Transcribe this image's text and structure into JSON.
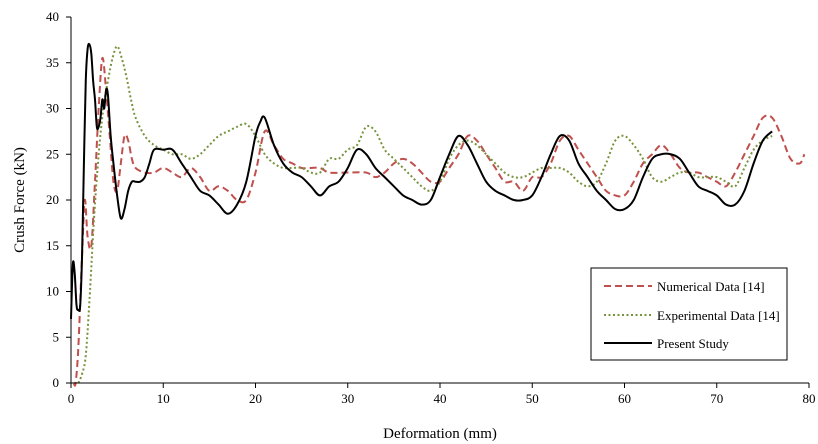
{
  "chart_data": {
    "type": "line",
    "xlabel": "Deformation (mm)",
    "ylabel": "Crush Force (kN)",
    "xlim": [
      0,
      80
    ],
    "ylim": [
      0,
      40
    ],
    "xticks": [
      0,
      10,
      20,
      30,
      40,
      50,
      60,
      70,
      80
    ],
    "yticks": [
      0,
      5,
      10,
      15,
      20,
      25,
      30,
      35,
      40
    ],
    "grid": false,
    "legend_position": "lower-right",
    "series": [
      {
        "name": "Numerical Data [14]",
        "color": "#c0504d",
        "dash": "dashed",
        "x": [
          0.3,
          0.5,
          0.8,
          1.2,
          1.5,
          1.8,
          2.2,
          2.6,
          3.0,
          3.4,
          3.8,
          4.2,
          4.6,
          5.0,
          5.4,
          5.8,
          6.2,
          6.6,
          7.0,
          8.0,
          9.0,
          10.0,
          11.0,
          12.0,
          13.0,
          14.0,
          15.0,
          16.0,
          17.0,
          18.0,
          19.0,
          20.0,
          21.0,
          22.0,
          23.0,
          24.0,
          25.0,
          26.0,
          27.0,
          28.0,
          30.0,
          32.0,
          33.0,
          34.0,
          35.0,
          36.0,
          37.0,
          38.0,
          39.0,
          40.0,
          41.0,
          42.0,
          43.0,
          44.0,
          45.0,
          46.0,
          47.0,
          48.0,
          49.0,
          50.0,
          51.0,
          52.0,
          53.0,
          54.0,
          55.0,
          56.0,
          57.0,
          58.0,
          59.0,
          60.0,
          61.0,
          62.0,
          63.0,
          64.0,
          65.0,
          66.0,
          67.0,
          68.0,
          69.0,
          70.0,
          71.0,
          72.0,
          73.0,
          74.0,
          75.0,
          76.0,
          77.0,
          78.0,
          79.0,
          79.5
        ],
        "y": [
          0,
          0,
          4,
          14,
          20,
          16,
          15,
          22,
          30,
          35.5,
          32,
          27,
          22,
          21,
          24,
          27,
          26.5,
          24.5,
          23.5,
          23,
          23,
          23.5,
          23,
          22.5,
          23.5,
          22.5,
          21,
          21.5,
          21,
          20,
          20,
          23,
          27.5,
          26,
          24.5,
          24,
          23.5,
          23.5,
          23.5,
          23,
          23,
          23,
          22.5,
          23,
          24,
          24.5,
          24,
          23,
          22,
          22,
          23.5,
          25,
          27,
          26.5,
          25,
          23.5,
          22,
          22,
          21,
          22.5,
          22.5,
          24,
          26.5,
          27,
          25.5,
          24,
          22.5,
          21,
          20.5,
          20.5,
          22,
          24,
          25,
          26,
          25,
          23.5,
          23,
          23,
          22.5,
          22,
          21.5,
          23,
          25,
          27,
          29,
          29,
          27,
          24.5,
          24,
          25
        ]
      },
      {
        "name": "Experimental Data [14]",
        "color": "#77933c",
        "dash": "dotted",
        "x": [
          0.8,
          1.2,
          1.6,
          2.0,
          2.5,
          3.0,
          3.5,
          4.0,
          4.5,
          5.0,
          5.5,
          6.0,
          6.5,
          7.0,
          8.0,
          9.0,
          10.0,
          11.0,
          12.0,
          13.0,
          14.0,
          15.0,
          16.0,
          17.0,
          18.0,
          19.0,
          20.0,
          21.0,
          22.0,
          23.0,
          24.0,
          25.0,
          26.0,
          27.0,
          28.0,
          29.0,
          30.0,
          31.0,
          32.0,
          33.0,
          34.0,
          35.0,
          36.0,
          37.0,
          38.0,
          39.0,
          40.0,
          41.0,
          42.0,
          43.0,
          44.0,
          45.0,
          46.0,
          47.0,
          48.0,
          49.0,
          50.0,
          51.0,
          52.0,
          53.0,
          54.0,
          55.0,
          56.0,
          57.0,
          58.0,
          59.0,
          60.0,
          61.0,
          62.0,
          63.0,
          64.0,
          65.0,
          66.0,
          67.0,
          68.0,
          69.0,
          70.0,
          71.0,
          72.0,
          73.0,
          74.0,
          75.0,
          76.0
        ],
        "y": [
          0,
          1,
          3,
          9,
          18,
          25,
          30,
          33,
          35.5,
          36.8,
          35.5,
          33.5,
          31,
          29,
          27,
          26,
          25.5,
          25,
          25,
          24.5,
          25,
          26,
          27,
          27.5,
          28,
          28.3,
          27,
          25,
          24,
          23.5,
          23.5,
          23.5,
          23,
          23,
          24.5,
          24.5,
          25.5,
          26,
          28,
          27.5,
          25.5,
          24.5,
          23.5,
          22.5,
          21.5,
          21,
          22,
          24.5,
          26,
          26.5,
          26,
          25,
          24,
          23,
          22.5,
          22.5,
          23,
          23.5,
          23.5,
          23.5,
          23,
          22,
          21.5,
          22,
          24,
          26.5,
          27,
          26,
          24.5,
          22.5,
          22,
          22.5,
          23,
          23,
          22.5,
          22.5,
          22.5,
          22,
          21.5,
          23.5,
          25.5,
          26.5,
          27
        ]
      },
      {
        "name": "Present Study",
        "color": "#000000",
        "dash": "solid",
        "x": [
          0,
          0.2,
          0.4,
          0.6,
          0.8,
          1.0,
          1.2,
          1.4,
          1.6,
          1.8,
          2.0,
          2.2,
          2.4,
          2.6,
          2.8,
          3.0,
          3.2,
          3.4,
          3.6,
          3.8,
          4.0,
          4.3,
          4.6,
          5.0,
          5.4,
          5.8,
          6.2,
          6.6,
          7.0,
          7.5,
          8.0,
          8.5,
          9.0,
          10.0,
          11.0,
          12.0,
          13.0,
          14.0,
          15.0,
          16.0,
          17.0,
          18.0,
          19.0,
          20.0,
          20.5,
          21.0,
          22.0,
          23.0,
          24.0,
          25.0,
          26.0,
          27.0,
          28.0,
          29.0,
          30.0,
          31.0,
          32.0,
          33.0,
          34.0,
          35.0,
          36.0,
          37.0,
          38.0,
          39.0,
          40.0,
          41.0,
          42.0,
          43.0,
          44.0,
          45.0,
          46.0,
          47.0,
          48.0,
          49.0,
          50.0,
          51.0,
          52.0,
          53.0,
          54.0,
          55.0,
          56.0,
          57.0,
          58.0,
          59.0,
          60.0,
          61.0,
          62.0,
          63.0,
          64.0,
          65.0,
          66.0,
          67.0,
          68.0,
          69.0,
          70.0,
          71.0,
          72.0,
          73.0,
          74.0,
          75.0,
          76.0
        ],
        "y": [
          7,
          13,
          12,
          8.5,
          8,
          8.5,
          14,
          24,
          33,
          36.5,
          37,
          36,
          33,
          31,
          28,
          28,
          29,
          31,
          30,
          32,
          31.5,
          27,
          24,
          20.5,
          18,
          19,
          21,
          22,
          22,
          22,
          22.5,
          24,
          25.5,
          25.5,
          25.5,
          24,
          22.5,
          21,
          20.5,
          19.5,
          18.5,
          19.5,
          22,
          27,
          28.5,
          29,
          26,
          24,
          23,
          22.5,
          21.5,
          20.5,
          21.5,
          22,
          23.5,
          25.5,
          25,
          23.5,
          22.5,
          21.5,
          20.5,
          20,
          19.5,
          20,
          22.5,
          25,
          27,
          26,
          24,
          22,
          21,
          20.5,
          20,
          20,
          20.5,
          22.5,
          25,
          27,
          26.5,
          24,
          22.5,
          21,
          20,
          19,
          19,
          20,
          22.5,
          24.5,
          25,
          25,
          24.5,
          23,
          21.5,
          21,
          20.5,
          19.5,
          19.5,
          21,
          24,
          26.5,
          27.5
        ]
      }
    ]
  }
}
